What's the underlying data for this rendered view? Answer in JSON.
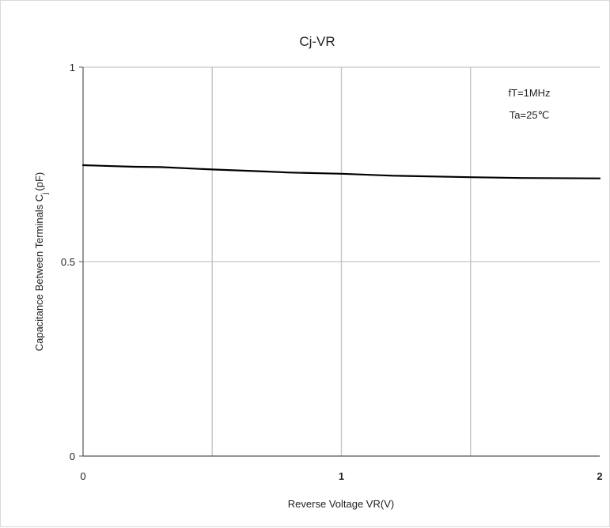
{
  "chart_data": {
    "type": "line",
    "title": "Cj-VR",
    "xlabel": "Reverse Voltage   VR(V)",
    "ylabel": "Capacitance Between Terminals C",
    "ylabel_subscript": "j",
    "ylabel_unit": "(pF)",
    "xlim": [
      0,
      2
    ],
    "ylim": [
      0,
      1
    ],
    "x_ticks": [
      {
        "value": 0,
        "label": "0"
      },
      {
        "value": 1,
        "label": "1"
      },
      {
        "value": 2,
        "label": "2"
      }
    ],
    "x_gridlines": [
      0.5,
      1,
      1.5
    ],
    "y_ticks": [
      {
        "value": 0,
        "label": "0"
      },
      {
        "value": 0.5,
        "label": "0.5"
      },
      {
        "value": 1,
        "label": "1"
      }
    ],
    "grid": true,
    "annotations": [
      "fT=1MHz",
      "Ta=25℃"
    ],
    "series": [
      {
        "color": "#000000",
        "x": [
          0,
          0.2,
          0.3,
          0.5,
          0.7,
          0.8,
          1.0,
          1.2,
          1.5,
          1.7,
          2.0
        ],
        "y": [
          0.748,
          0.744,
          0.743,
          0.737,
          0.732,
          0.729,
          0.726,
          0.721,
          0.717,
          0.715,
          0.714
        ]
      }
    ]
  }
}
